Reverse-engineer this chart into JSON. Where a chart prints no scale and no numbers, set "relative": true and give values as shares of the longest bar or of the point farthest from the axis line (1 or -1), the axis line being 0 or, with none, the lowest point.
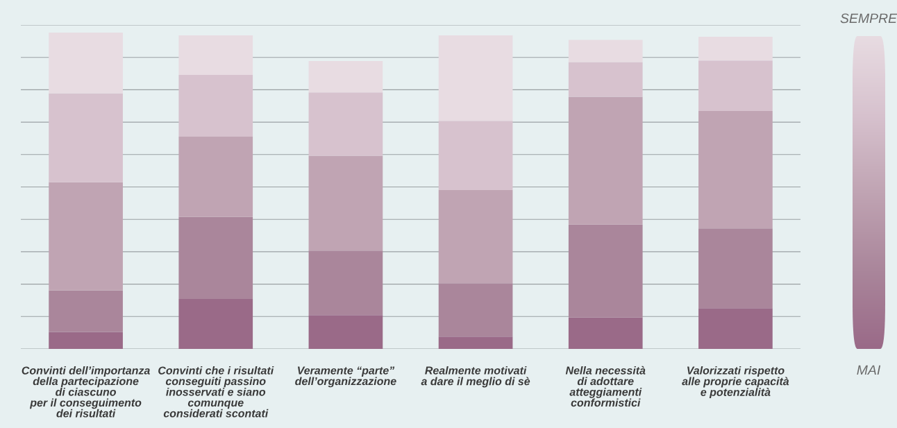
{
  "chart_data": {
    "type": "bar",
    "stacked": true,
    "relative": true,
    "grid": "y",
    "legend": false,
    "categories": [
      "Convinti dell’importanza\ndella partecipazione\ndi ciascuno\nper il conseguimento\ndei risultati",
      "Convinti che i risultati\nconseguiti passino\ninosservati e siano\ncomunque\nconsiderati scontati",
      "Veramente “parte”\ndell’organizzazione",
      "Realmente motivati\na dare il meglio di sè",
      "Nella necessità\ndi adottare\natteggiamenti\nconformistici",
      "Valorizzati rispetto\nalle proprie capacità\ne potenzialità"
    ],
    "series": [
      {
        "color": "#9a6a88",
        "values": [
          0.053,
          0.158,
          0.107,
          0.039,
          0.099,
          0.129
        ]
      },
      {
        "color": "#aa869b",
        "values": [
          0.132,
          0.259,
          0.204,
          0.169,
          0.294,
          0.252
        ]
      },
      {
        "color": "#c0a4b3",
        "values": [
          0.342,
          0.254,
          0.3,
          0.294,
          0.404,
          0.371
        ]
      },
      {
        "color": "#d7c2ce",
        "values": [
          0.281,
          0.195,
          0.2,
          0.219,
          0.11,
          0.16
        ]
      },
      {
        "color": "#e8dce2",
        "values": [
          0.192,
          0.125,
          0.099,
          0.27,
          0.07,
          0.075
        ]
      }
    ],
    "annotations": [
      "SEMPRE",
      "MAI"
    ]
  }
}
